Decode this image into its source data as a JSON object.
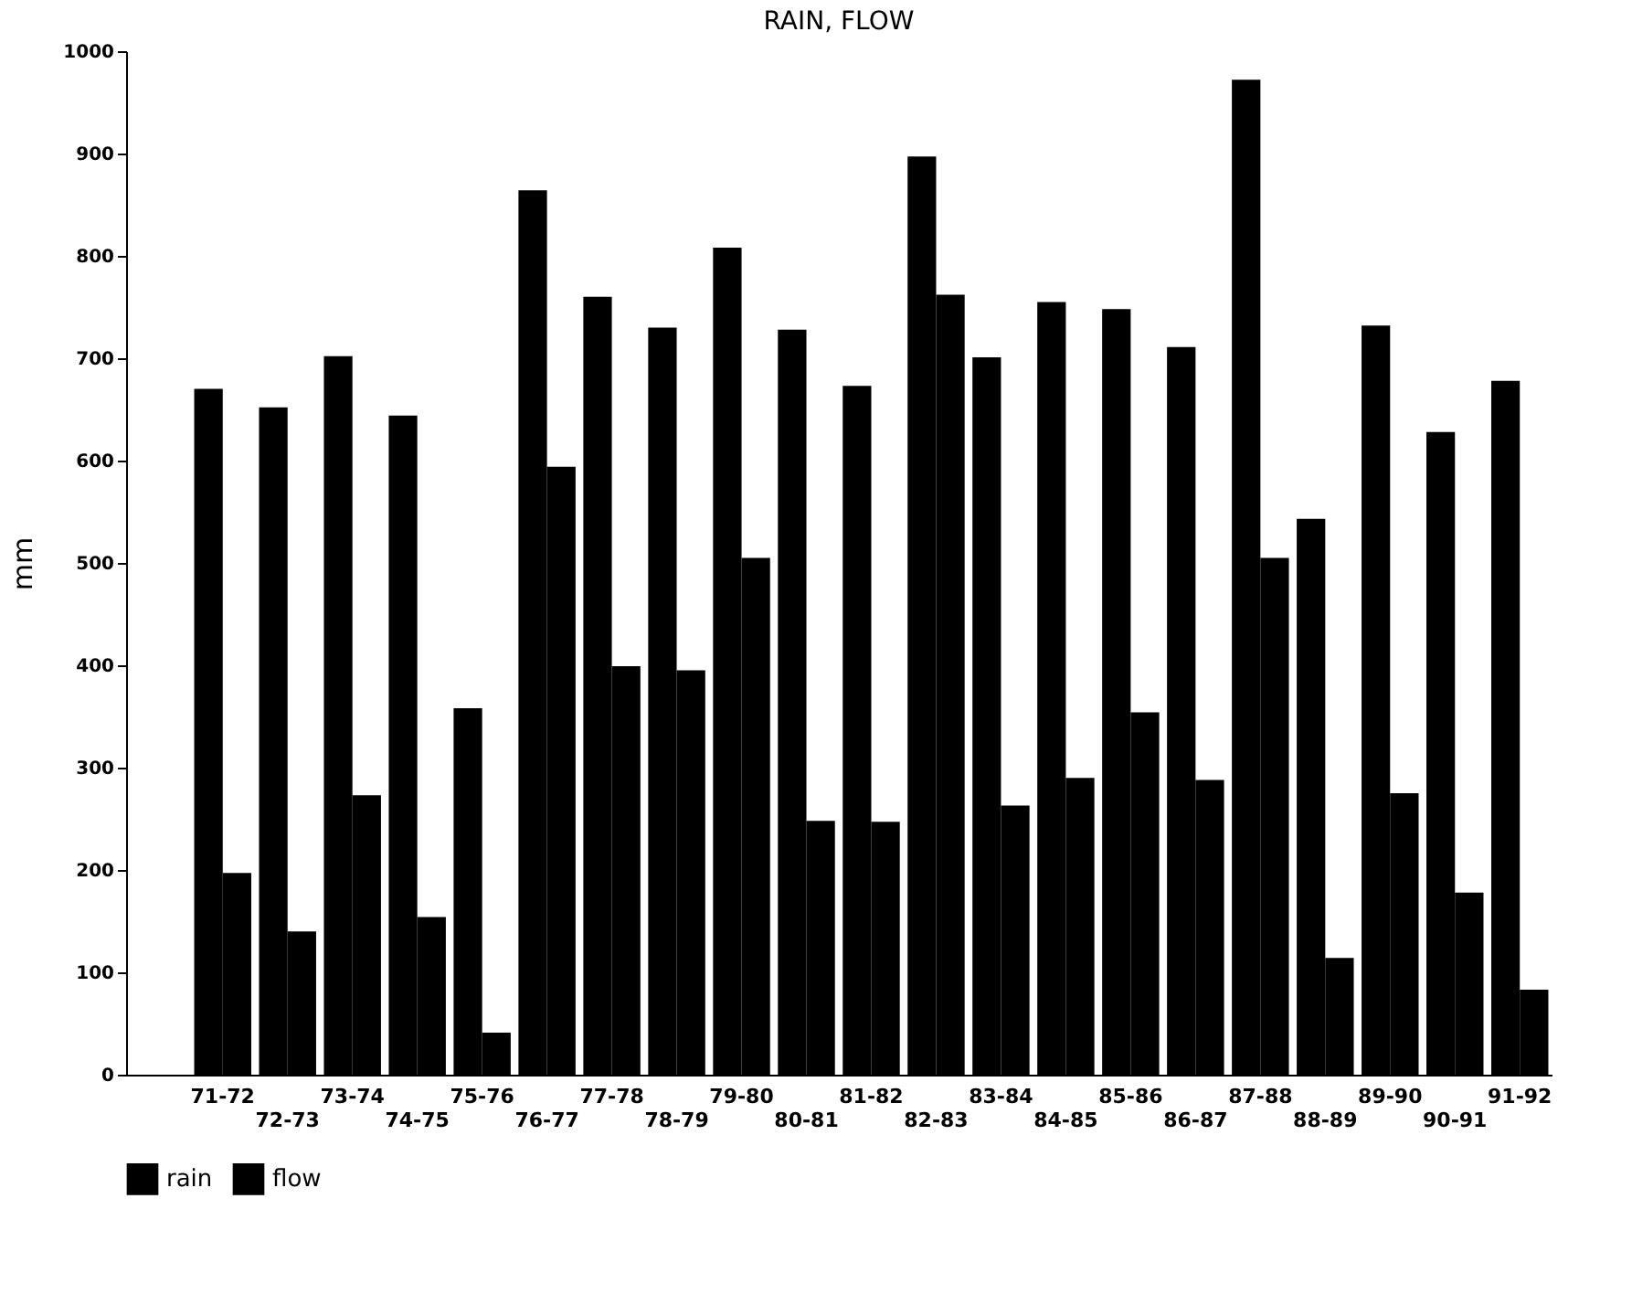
{
  "chart_data": {
    "type": "bar",
    "title": "RAIN, FLOW",
    "ylabel": "mm",
    "categories": [
      null,
      "71-72",
      "72-73",
      "73-74",
      "74-75",
      "75-76",
      "76-77",
      "77-78",
      "78-79",
      "79-80",
      "80-81",
      "81-82",
      "82-83",
      "83-84",
      "84-85",
      "85-86",
      "86-87",
      "87-88",
      "88-89",
      "89-90",
      "90-91",
      "91-92"
    ],
    "series": [
      {
        "name": "rain",
        "color": "#000000",
        "values": [
          null,
          670,
          652,
          702,
          644,
          358,
          864,
          760,
          730,
          808,
          728,
          673,
          897,
          701,
          755,
          748,
          711,
          972,
          543,
          732,
          628,
          678
        ]
      },
      {
        "name": "flow",
        "color": "#000000",
        "values": [
          null,
          197,
          140,
          273,
          154,
          41,
          594,
          399,
          395,
          505,
          248,
          247,
          762,
          263,
          290,
          354,
          288,
          505,
          114,
          275,
          178,
          83
        ]
      }
    ],
    "ylim": [
      0,
      1000
    ],
    "yticks": [
      0,
      100,
      200,
      300,
      400,
      500,
      600,
      700,
      800,
      900,
      1000
    ],
    "grid": false,
    "legend": "bottom"
  }
}
